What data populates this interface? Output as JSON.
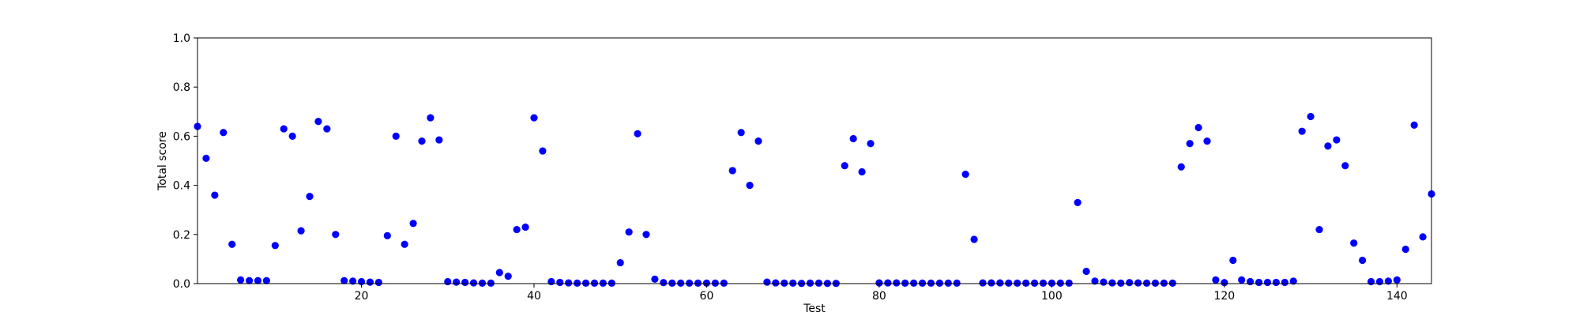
{
  "chart_data": {
    "type": "scatter",
    "title": "",
    "xlabel": "Test",
    "ylabel": "Total score",
    "xlim": [
      1,
      144
    ],
    "ylim": [
      0,
      1
    ],
    "x_ticks": [
      20,
      40,
      60,
      80,
      100,
      120,
      140
    ],
    "y_ticks": [
      0.0,
      0.2,
      0.4,
      0.6,
      0.8,
      1.0
    ],
    "x_tick_labels": [
      "20",
      "40",
      "60",
      "80",
      "100",
      "120",
      "140"
    ],
    "y_tick_labels": [
      "0.0",
      "0.2",
      "0.4",
      "0.6",
      "0.8",
      "1.0"
    ],
    "grid": false,
    "marker_color": "#0000ff",
    "series": [
      {
        "x": [
          1,
          2,
          3,
          4,
          5,
          6,
          7,
          8,
          9,
          10,
          11,
          12,
          13,
          14,
          15,
          16,
          17,
          18,
          19,
          20,
          21,
          22,
          23,
          24,
          25,
          26,
          27,
          28,
          29,
          30,
          31,
          32,
          33,
          34,
          35,
          36,
          37,
          38,
          39,
          40,
          41,
          42,
          43,
          44,
          45,
          46,
          47,
          48,
          49,
          50,
          51,
          52,
          53,
          54,
          55,
          56,
          57,
          58,
          59,
          60,
          61,
          62,
          63,
          64,
          65,
          66,
          67,
          68,
          69,
          70,
          71,
          72,
          73,
          74,
          75,
          76,
          77,
          78,
          79,
          80,
          81,
          82,
          83,
          84,
          85,
          86,
          87,
          88,
          89,
          90,
          91,
          92,
          93,
          94,
          95,
          96,
          97,
          98,
          99,
          100,
          101,
          102,
          103,
          104,
          105,
          106,
          107,
          108,
          109,
          110,
          111,
          112,
          113,
          114,
          115,
          116,
          117,
          118,
          119,
          120,
          121,
          122,
          123,
          124,
          125,
          126,
          127,
          128,
          129,
          130,
          131,
          132,
          133,
          134,
          135,
          136,
          137,
          138,
          139,
          140,
          141,
          142,
          143,
          144
        ],
        "y": [
          0.64,
          0.51,
          0.36,
          0.615,
          0.16,
          0.015,
          0.012,
          0.012,
          0.012,
          0.155,
          0.63,
          0.6,
          0.215,
          0.355,
          0.66,
          0.63,
          0.2,
          0.012,
          0.01,
          0.008,
          0.006,
          0.005,
          0.195,
          0.6,
          0.16,
          0.245,
          0.58,
          0.675,
          0.585,
          0.008,
          0.006,
          0.005,
          0.003,
          0.002,
          0.002,
          0.045,
          0.03,
          0.22,
          0.23,
          0.675,
          0.54,
          0.008,
          0.005,
          0.003,
          0.002,
          0.002,
          0.002,
          0.002,
          0.002,
          0.085,
          0.21,
          0.61,
          0.2,
          0.018,
          0.004,
          0.002,
          0.002,
          0.002,
          0.002,
          0.002,
          0.002,
          0.002,
          0.46,
          0.615,
          0.4,
          0.58,
          0.006,
          0.003,
          0.002,
          0.002,
          0.001,
          0.002,
          0.002,
          0.001,
          0.001,
          0.48,
          0.59,
          0.455,
          0.57,
          0.003,
          0.003,
          0.003,
          0.002,
          0.002,
          0.002,
          0.002,
          0.002,
          0.002,
          0.002,
          0.445,
          0.18,
          0.003,
          0.003,
          0.003,
          0.002,
          0.002,
          0.002,
          0.002,
          0.002,
          0.002,
          0.002,
          0.002,
          0.33,
          0.05,
          0.01,
          0.006,
          0.003,
          0.002,
          0.004,
          0.003,
          0.002,
          0.002,
          0.002,
          0.002,
          0.475,
          0.57,
          0.635,
          0.58,
          0.015,
          0.004,
          0.095,
          0.015,
          0.008,
          0.005,
          0.005,
          0.005,
          0.005,
          0.01,
          0.62,
          0.68,
          0.22,
          0.56,
          0.585,
          0.48,
          0.165,
          0.095,
          0.008,
          0.008,
          0.01,
          0.015,
          0.14,
          0.645,
          0.19,
          0.365
        ]
      }
    ]
  }
}
